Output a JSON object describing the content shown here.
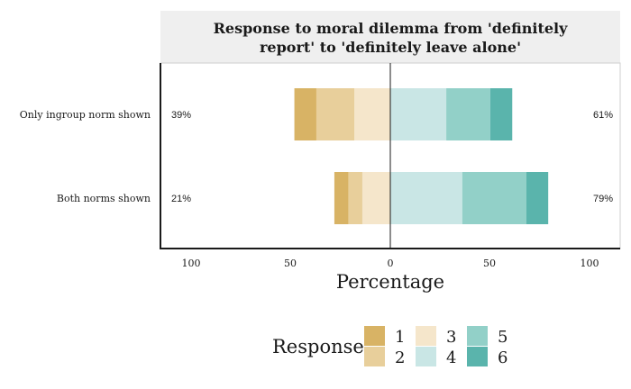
{
  "chart_data": {
    "type": "bar",
    "orientation": "horizontal-diverging-stacked",
    "title": "Response to moral dilemma from 'definitely report' to 'definitely leave alone'",
    "title_lines": [
      "Response to moral dilemma from 'definitely",
      "report' to 'definitely leave alone'"
    ],
    "xlabel": "Percentage",
    "ylabel": "",
    "xlim": [
      -115,
      115
    ],
    "x_ticks": [
      -100,
      -50,
      0,
      50,
      100
    ],
    "x_tick_labels": [
      "100",
      "50",
      "0",
      "50",
      "100"
    ],
    "categories": [
      "Only ingroup norm shown",
      "Both norms shown"
    ],
    "series": [
      {
        "name": "1",
        "color": "#d8b365",
        "values": [
          11,
          7
        ]
      },
      {
        "name": "2",
        "color": "#e8cf9b",
        "values": [
          19,
          7
        ]
      },
      {
        "name": "3",
        "color": "#f5e6cb",
        "values": [
          18,
          14
        ]
      },
      {
        "name": "4",
        "color": "#c9e6e5",
        "values": [
          28,
          36
        ]
      },
      {
        "name": "5",
        "color": "#92d0c8",
        "values": [
          22,
          32
        ]
      },
      {
        "name": "6",
        "color": "#5ab4ac",
        "values": [
          11,
          11
        ]
      }
    ],
    "neutral_series": "3",
    "left_percent_labels": [
      "39%",
      "21%"
    ],
    "right_percent_labels": [
      "61%",
      "79%"
    ],
    "legend": {
      "title": "Response",
      "position": "bottom",
      "items": [
        "1",
        "2",
        "3",
        "4",
        "5",
        "6"
      ]
    },
    "grid": false
  }
}
